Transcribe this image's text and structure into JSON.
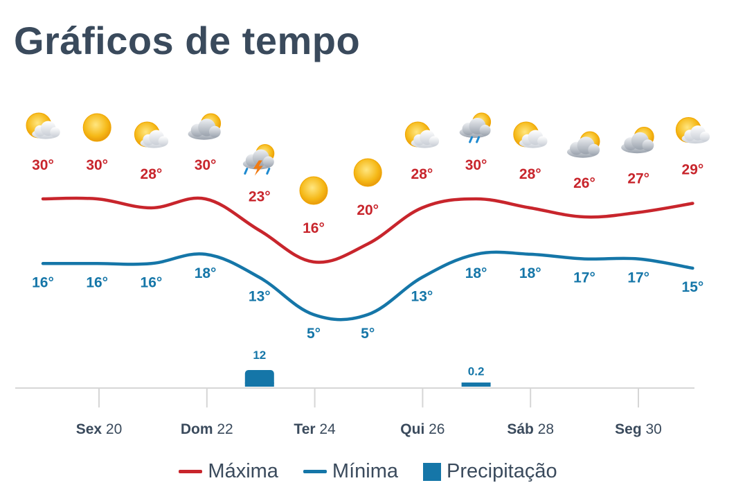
{
  "title": "Gráficos de tempo",
  "colors": {
    "max": "#c8252c",
    "min": "#1576a8",
    "precip": "#1576a8",
    "axis": "#d6d6d6",
    "text": "#3a4a5c"
  },
  "chart_data": {
    "type": "line",
    "title": "Gráficos de tempo",
    "x_axis_ticks": [
      {
        "day": "Sex",
        "num": "20"
      },
      {
        "day": "Dom",
        "num": "22"
      },
      {
        "day": "Ter",
        "num": "24"
      },
      {
        "day": "Qui",
        "num": "26"
      },
      {
        "day": "Sáb",
        "num": "28"
      },
      {
        "day": "Seg",
        "num": "30"
      }
    ],
    "icons": [
      "partly-sunny-icon",
      "sun-icon",
      "partly-sunny-icon",
      "mostly-cloudy-icon",
      "thunderstorm-icon",
      "sun-icon",
      "sun-icon",
      "partly-sunny-icon",
      "rain-icon",
      "partly-sunny-icon",
      "mostly-cloudy-icon",
      "mostly-cloudy-icon",
      "partly-sunny-icon"
    ],
    "series": [
      {
        "name": "Máxima",
        "values": [
          30,
          30,
          28,
          30,
          23,
          16,
          20,
          28,
          30,
          28,
          26,
          27,
          29
        ],
        "labels": [
          "30°",
          "30°",
          "28°",
          "30°",
          "23°",
          "16°",
          "20°",
          "28°",
          "30°",
          "28°",
          "26°",
          "27°",
          "29°"
        ]
      },
      {
        "name": "Mínima",
        "values": [
          16,
          16,
          16,
          18,
          13,
          5,
          5,
          13,
          18,
          18,
          17,
          17,
          15
        ],
        "labels": [
          "16°",
          "16°",
          "16°",
          "18°",
          "13°",
          "5°",
          "5°",
          "13°",
          "18°",
          "18°",
          "17°",
          "17°",
          "15°"
        ]
      },
      {
        "name": "Precipitação",
        "values": [
          null,
          null,
          null,
          null,
          12,
          null,
          null,
          null,
          0.2,
          null,
          null,
          null,
          null
        ],
        "labels": [
          "",
          "",
          "",
          "",
          "12",
          "",
          "",
          "",
          "0.2",
          "",
          "",
          "",
          ""
        ]
      }
    ],
    "legend": {
      "position": "bottom",
      "items": [
        "Máxima",
        "Mínima",
        "Precipitação"
      ]
    },
    "grid": false
  }
}
